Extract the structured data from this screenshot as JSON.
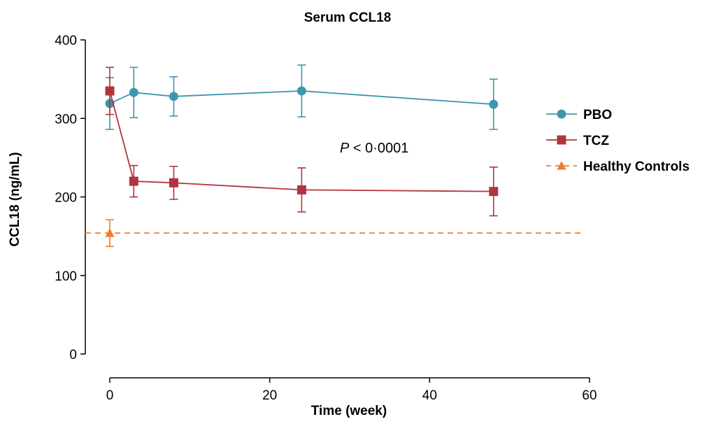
{
  "chart_data": {
    "type": "line",
    "title": "Serum CCL18",
    "xlabel": "Time (week)",
    "ylabel": "CCL18 (ng/mL)",
    "xlim": [
      0,
      60
    ],
    "ylim": [
      0,
      400
    ],
    "xticks": [
      0,
      20,
      40,
      60
    ],
    "yticks": [
      0,
      100,
      200,
      300,
      400
    ],
    "annotation": {
      "prefix": "P",
      "text": " < 0·0001"
    },
    "legend_position": "right",
    "series": [
      {
        "name": "PBO",
        "color": "#3e96ae",
        "marker": "circle",
        "x": [
          0,
          3,
          8,
          24,
          48
        ],
        "y": [
          319,
          333,
          328,
          335,
          318
        ],
        "err": [
          33,
          32,
          25,
          33,
          32
        ]
      },
      {
        "name": "TCZ",
        "color": "#b2343e",
        "marker": "square",
        "x": [
          0,
          3,
          8,
          24,
          48
        ],
        "y": [
          335,
          220,
          218,
          209,
          207
        ],
        "err": [
          30,
          20,
          21,
          28,
          31
        ]
      },
      {
        "name": "Healthy Controls",
        "color": "#ef7d2e",
        "marker": "triangle",
        "dashed": true,
        "x": [
          0
        ],
        "y": [
          154
        ],
        "err": [
          17
        ],
        "reference_value": 154
      }
    ]
  }
}
